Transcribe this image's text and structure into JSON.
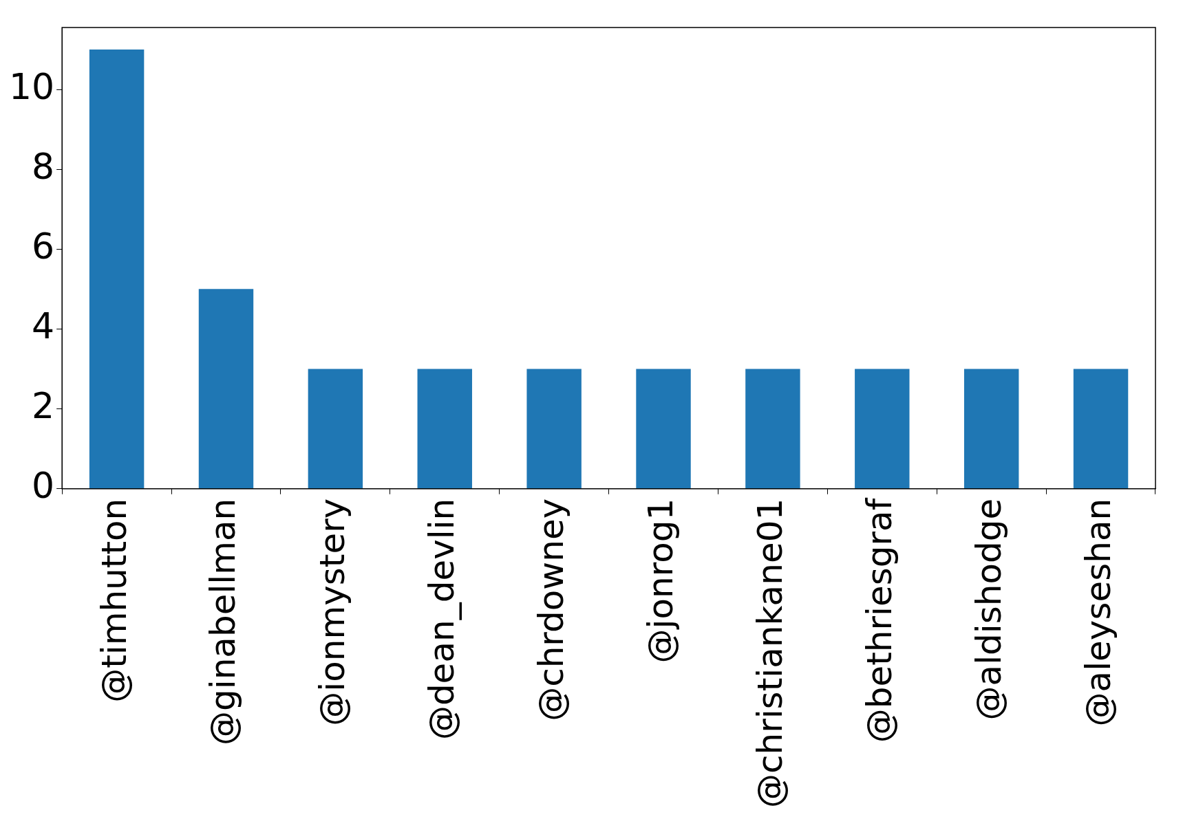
{
  "chart_data": {
    "type": "bar",
    "categories": [
      "@timhutton",
      "@ginabellman",
      "@ionmystery",
      "@dean_devlin",
      "@chrdowney",
      "@jonrog1",
      "@christiankane01",
      "@bethriesgraf",
      "@aldishodge",
      "@aleyseshan"
    ],
    "values": [
      11,
      5,
      3,
      3,
      3,
      3,
      3,
      3,
      3,
      3
    ],
    "color": "#1f77b4",
    "ylim": [
      0,
      11.55
    ],
    "yticks": [
      0,
      2,
      4,
      6,
      8,
      10
    ],
    "grid": false,
    "legend": false
  }
}
